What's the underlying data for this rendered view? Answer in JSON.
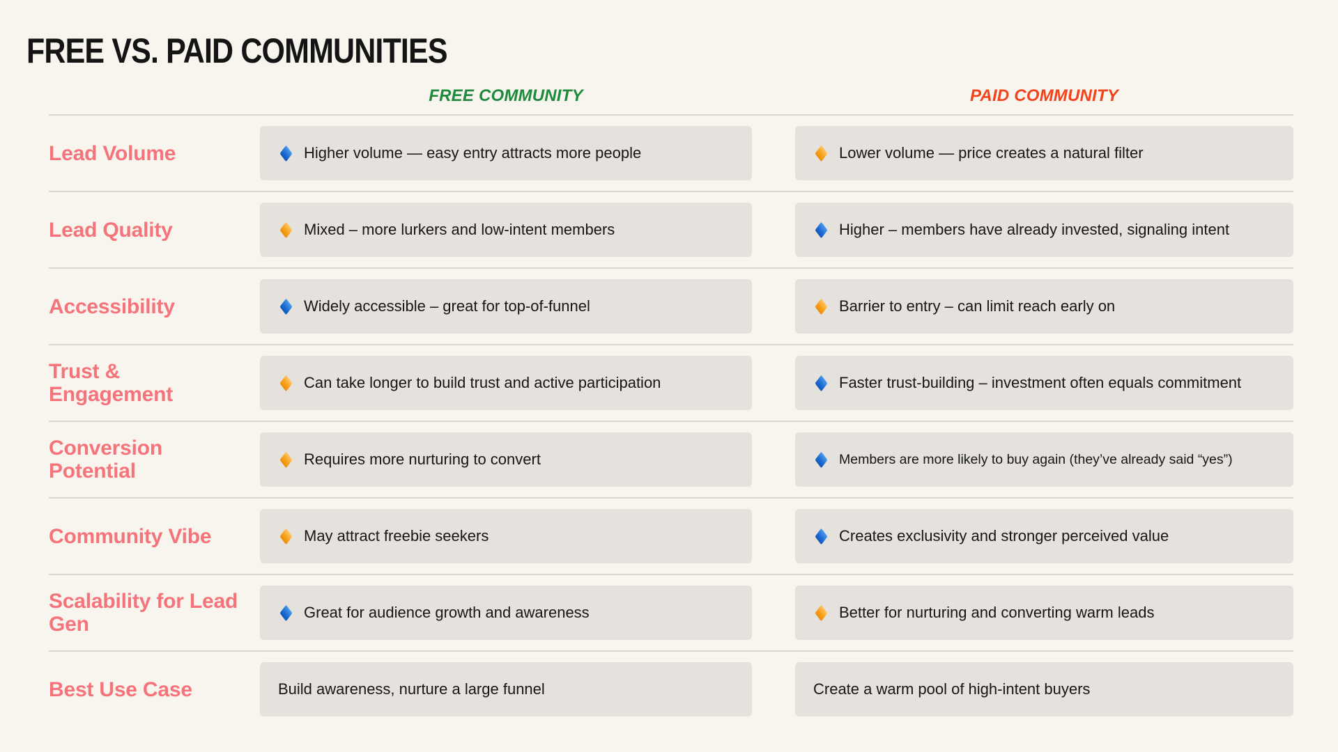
{
  "title": "FREE VS. PAID COMMUNITIES",
  "columns": [
    {
      "label": "FREE COMMUNITY"
    },
    {
      "label": "PAID COMMUNITY"
    }
  ],
  "colors": {
    "background": "#F8F4EE",
    "cell_bg": "#E5E1DC",
    "divider": "#D9D6D0",
    "label_coral": "#F5737A",
    "free_green": "#1F8A3C",
    "paid_red": "#F2431C",
    "diamond_blue": "#1E6FD6",
    "diamond_orange": "#F9A11B",
    "title_text": "#141414",
    "cell_text": "#161616"
  },
  "rows": [
    {
      "label": "Lead Volume",
      "free": {
        "icon": "blue-diamond",
        "text": "Higher volume — easy entry attracts more people"
      },
      "paid": {
        "icon": "orange-diamond",
        "text": "Lower volume — price creates a natural filter"
      }
    },
    {
      "label": "Lead Quality",
      "free": {
        "icon": "orange-diamond",
        "text": "Mixed – more lurkers and low-intent members"
      },
      "paid": {
        "icon": "blue-diamond",
        "text": "Higher – members have already invested, signaling intent"
      }
    },
    {
      "label": "Accessibility",
      "free": {
        "icon": "blue-diamond",
        "text": "Widely accessible – great for top-of-funnel"
      },
      "paid": {
        "icon": "orange-diamond",
        "text": "Barrier to entry – can limit reach early on"
      }
    },
    {
      "label": "Trust & Engagement",
      "free": {
        "icon": "orange-diamond",
        "text": "Can take longer to build trust and active participation"
      },
      "paid": {
        "icon": "blue-diamond",
        "text": "Faster trust-building – investment often equals commitment"
      }
    },
    {
      "label": "Conversion Potential",
      "free": {
        "icon": "orange-diamond",
        "text": "Requires more nurturing to convert"
      },
      "paid": {
        "icon": "blue-diamond",
        "text": "Members are more likely to buy again (they’ve already said “yes”)"
      }
    },
    {
      "label": "Community Vibe",
      "free": {
        "icon": "orange-diamond",
        "text": "May attract freebie seekers"
      },
      "paid": {
        "icon": "blue-diamond",
        "text": "Creates exclusivity and stronger perceived value"
      }
    },
    {
      "label": "Scalability for Lead Gen",
      "free": {
        "icon": "blue-diamond",
        "text": "Great for audience growth and awareness"
      },
      "paid": {
        "icon": "orange-diamond",
        "text": "Better for nurturing and converting warm leads"
      }
    },
    {
      "label": "Best Use Case",
      "free": {
        "icon": null,
        "text": "Build awareness, nurture a large funnel"
      },
      "paid": {
        "icon": null,
        "text": "Create a warm pool of high-intent buyers"
      }
    }
  ]
}
